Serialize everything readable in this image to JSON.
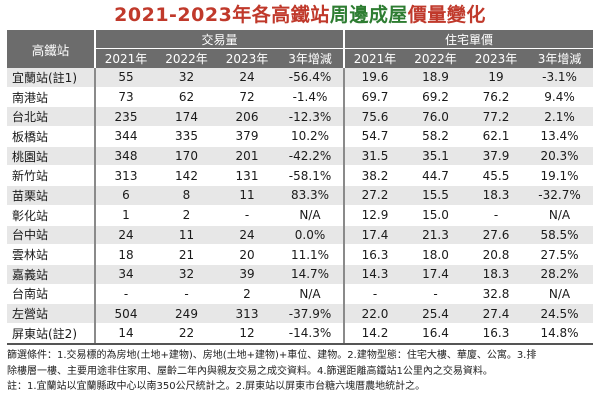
{
  "title": {
    "part1": "2021-2023年各高鐵站",
    "part2": "周邊成屋",
    "part3": "價量變化"
  },
  "table": {
    "station_header": "高鐵站",
    "group_volume": "交易量",
    "group_price": "住宅單價",
    "volume_columns": [
      "2021年",
      "2022年",
      "2023年",
      "3年增減"
    ],
    "price_columns": [
      "2021年",
      "2022年",
      "2023年",
      "3年增減"
    ],
    "rows": [
      {
        "station": "宜蘭站(註1)",
        "v2021": "55",
        "v2022": "32",
        "v2023": "24",
        "vchg": "-56.4%",
        "p2021": "19.6",
        "p2022": "18.9",
        "p2023": "19",
        "pchg": "-3.1%"
      },
      {
        "station": "南港站",
        "v2021": "73",
        "v2022": "62",
        "v2023": "72",
        "vchg": "-1.4%",
        "p2021": "69.7",
        "p2022": "69.2",
        "p2023": "76.2",
        "pchg": "9.4%"
      },
      {
        "station": "台北站",
        "v2021": "235",
        "v2022": "174",
        "v2023": "206",
        "vchg": "-12.3%",
        "p2021": "75.6",
        "p2022": "76.0",
        "p2023": "77.2",
        "pchg": "2.1%"
      },
      {
        "station": "板橋站",
        "v2021": "344",
        "v2022": "335",
        "v2023": "379",
        "vchg": "10.2%",
        "p2021": "54.7",
        "p2022": "58.2",
        "p2023": "62.1",
        "pchg": "13.4%"
      },
      {
        "station": "桃園站",
        "v2021": "348",
        "v2022": "170",
        "v2023": "201",
        "vchg": "-42.2%",
        "p2021": "31.5",
        "p2022": "35.1",
        "p2023": "37.9",
        "pchg": "20.3%"
      },
      {
        "station": "新竹站",
        "v2021": "313",
        "v2022": "142",
        "v2023": "131",
        "vchg": "-58.1%",
        "p2021": "38.2",
        "p2022": "44.7",
        "p2023": "45.5",
        "pchg": "19.1%"
      },
      {
        "station": "苗栗站",
        "v2021": "6",
        "v2022": "8",
        "v2023": "11",
        "vchg": "83.3%",
        "p2021": "27.2",
        "p2022": "15.5",
        "p2023": "18.3",
        "pchg": "-32.7%"
      },
      {
        "station": "彰化站",
        "v2021": "1",
        "v2022": "2",
        "v2023": "-",
        "vchg": "N/A",
        "p2021": "12.9",
        "p2022": "15.0",
        "p2023": "-",
        "pchg": "N/A"
      },
      {
        "station": "台中站",
        "v2021": "24",
        "v2022": "11",
        "v2023": "24",
        "vchg": "0.0%",
        "p2021": "17.4",
        "p2022": "21.3",
        "p2023": "27.6",
        "pchg": "58.5%"
      },
      {
        "station": "雲林站",
        "v2021": "18",
        "v2022": "21",
        "v2023": "20",
        "vchg": "11.1%",
        "p2021": "16.3",
        "p2022": "18.0",
        "p2023": "20.8",
        "pchg": "27.5%"
      },
      {
        "station": "嘉義站",
        "v2021": "34",
        "v2022": "32",
        "v2023": "39",
        "vchg": "14.7%",
        "p2021": "14.3",
        "p2022": "17.4",
        "p2023": "18.3",
        "pchg": "28.2%"
      },
      {
        "station": "台南站",
        "v2021": "-",
        "v2022": "-",
        "v2023": "2",
        "vchg": "N/A",
        "p2021": "-",
        "p2022": "-",
        "p2023": "32.8",
        "pchg": "N/A"
      },
      {
        "station": "左營站",
        "v2021": "504",
        "v2022": "249",
        "v2023": "313",
        "vchg": "-37.9%",
        "p2021": "22.0",
        "p2022": "25.4",
        "p2023": "27.4",
        "pchg": "24.5%"
      },
      {
        "station": "屏東站(註2)",
        "v2021": "14",
        "v2022": "22",
        "v2023": "12",
        "vchg": "-14.3%",
        "p2021": "14.2",
        "p2022": "16.4",
        "p2023": "16.3",
        "pchg": "14.8%"
      }
    ]
  },
  "notes": {
    "line1": "篩選條件：1.交易標的為房地(土地+建物)、房地(土地+建物)+車位、建物。2.建物型態：住宅大樓、華廈、公寓。3.排",
    "line2": "除樓層一樓、主要用途非住家用、屋齡二年內與親友交易之成交資料。4.篩選距離高鐵站1公里內之交易資料。",
    "line3": "註：1.宜蘭站以宜蘭縣政中心以南350公尺統計之。2.屏東站以屏東市台糖六塊厝農地統計之。"
  },
  "colors": {
    "title_red": "#c0392b",
    "title_green": "#2e7d32",
    "header_bg": "#6c6c6c",
    "stripe_bg": "#e7e7e7"
  }
}
